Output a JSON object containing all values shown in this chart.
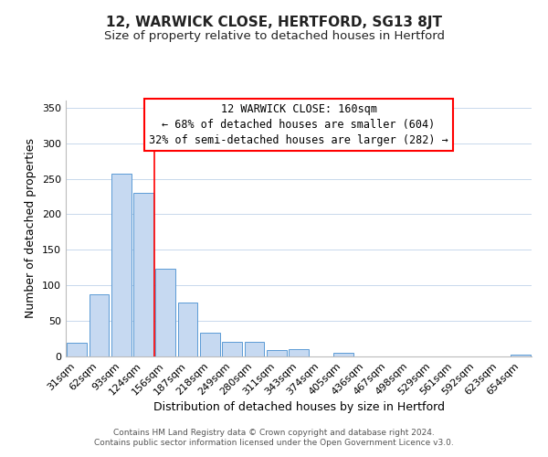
{
  "title": "12, WARWICK CLOSE, HERTFORD, SG13 8JT",
  "subtitle": "Size of property relative to detached houses in Hertford",
  "xlabel": "Distribution of detached houses by size in Hertford",
  "ylabel": "Number of detached properties",
  "footer_line1": "Contains HM Land Registry data © Crown copyright and database right 2024.",
  "footer_line2": "Contains public sector information licensed under the Open Government Licence v3.0.",
  "categories": [
    "31sqm",
    "62sqm",
    "93sqm",
    "124sqm",
    "156sqm",
    "187sqm",
    "218sqm",
    "249sqm",
    "280sqm",
    "311sqm",
    "343sqm",
    "374sqm",
    "405sqm",
    "436sqm",
    "467sqm",
    "498sqm",
    "529sqm",
    "561sqm",
    "592sqm",
    "623sqm",
    "654sqm"
  ],
  "values": [
    19,
    87,
    257,
    230,
    123,
    76,
    33,
    20,
    20,
    9,
    10,
    0,
    5,
    0,
    0,
    0,
    0,
    0,
    0,
    0,
    2
  ],
  "bar_color": "#c6d9f1",
  "bar_edge_color": "#5b9bd5",
  "vertical_line_color": "#ff0000",
  "vertical_line_index": 3.5,
  "ylim": [
    0,
    360
  ],
  "yticks": [
    0,
    50,
    100,
    150,
    200,
    250,
    300,
    350
  ],
  "annotation_text_line1": "12 WARWICK CLOSE: 160sqm",
  "annotation_text_line2": "← 68% of detached houses are smaller (604)",
  "annotation_text_line3": "32% of semi-detached houses are larger (282) →",
  "background_color": "#ffffff",
  "grid_color": "#c8d8ec",
  "title_fontsize": 11,
  "subtitle_fontsize": 9.5,
  "axis_label_fontsize": 9,
  "tick_fontsize": 8,
  "annotation_fontsize": 8.5,
  "footer_fontsize": 6.5
}
